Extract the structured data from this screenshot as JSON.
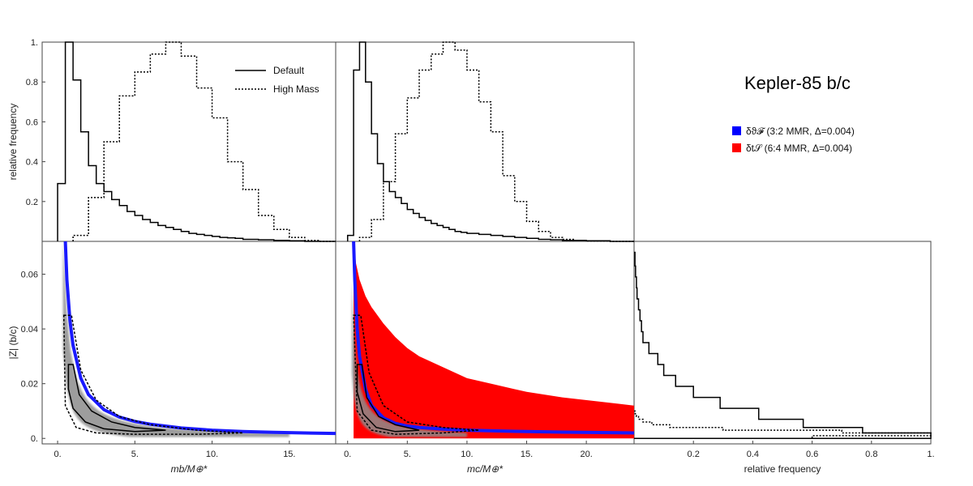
{
  "figure": {
    "title": "Kepler-85 b/c"
  },
  "legend": {
    "lines": [
      {
        "label": "Default",
        "style": "solid"
      },
      {
        "label": "High Mass",
        "style": "dotted"
      }
    ],
    "regions": [
      {
        "label": "δϑ𝓕 (3:2 MMR, Δ=0.004)",
        "color": "#0000ff"
      },
      {
        "label": "δt𝒮 (6:4 MMR, Δ=0.004)",
        "color": "#ff0000"
      }
    ]
  },
  "chart_data": [
    {
      "type": "histogram",
      "panel": "top-left",
      "xlim": [
        -1,
        18
      ],
      "ylim": [
        0,
        1
      ],
      "ylabel": "relative frequency",
      "yticks": [
        "0.2",
        "0.4",
        "0.6",
        "0.8",
        "1."
      ],
      "series": [
        {
          "name": "Default",
          "style": "solid",
          "edges": [
            0.0,
            0.5,
            1.0,
            1.5,
            2.0,
            2.5,
            3.0,
            3.5,
            4.0,
            4.5,
            5.0,
            5.5,
            6.0,
            6.5,
            7.0,
            7.5,
            8.0,
            8.5,
            9.0,
            9.5,
            10.0,
            10.5,
            11.0,
            11.5,
            12.0,
            13.0,
            14.0,
            15.0,
            16.0,
            18.0
          ],
          "values": [
            0.29,
            1.0,
            0.81,
            0.55,
            0.38,
            0.29,
            0.25,
            0.21,
            0.18,
            0.15,
            0.13,
            0.11,
            0.095,
            0.08,
            0.07,
            0.06,
            0.05,
            0.04,
            0.035,
            0.03,
            0.025,
            0.02,
            0.018,
            0.015,
            0.01,
            0.008,
            0.005,
            0.003,
            0.0
          ]
        },
        {
          "name": "High Mass",
          "style": "dotted",
          "edges": [
            1.0,
            2.0,
            3.0,
            4.0,
            5.0,
            6.0,
            7.0,
            8.0,
            9.0,
            10.0,
            11.0,
            12.0,
            13.0,
            14.0,
            15.0,
            16.0,
            17.0,
            18.0
          ],
          "values": [
            0.03,
            0.22,
            0.5,
            0.73,
            0.85,
            0.94,
            1.0,
            0.93,
            0.77,
            0.62,
            0.4,
            0.26,
            0.13,
            0.06,
            0.02,
            0.005,
            0.0
          ]
        }
      ]
    },
    {
      "type": "histogram",
      "panel": "top-middle",
      "xlim": [
        -1,
        24
      ],
      "ylim": [
        0,
        1
      ],
      "series": [
        {
          "name": "Default",
          "style": "solid",
          "edges": [
            0.0,
            0.5,
            1.0,
            1.5,
            2.0,
            2.5,
            3.0,
            3.5,
            4.0,
            4.5,
            5.0,
            5.5,
            6.0,
            6.5,
            7.0,
            7.5,
            8.0,
            8.5,
            9.0,
            9.5,
            10.0,
            11.0,
            12.0,
            13.0,
            14.0,
            15.0,
            16.0,
            17.0,
            18.0,
            20.0,
            22.0,
            24.0
          ],
          "values": [
            0.03,
            0.86,
            1.0,
            0.8,
            0.54,
            0.39,
            0.3,
            0.25,
            0.22,
            0.19,
            0.16,
            0.14,
            0.12,
            0.105,
            0.09,
            0.08,
            0.07,
            0.06,
            0.05,
            0.045,
            0.04,
            0.035,
            0.03,
            0.025,
            0.02,
            0.015,
            0.01,
            0.008,
            0.005,
            0.003,
            0.0
          ]
        },
        {
          "name": "High Mass",
          "style": "dotted",
          "edges": [
            1.0,
            2.0,
            3.0,
            4.0,
            5.0,
            6.0,
            7.0,
            8.0,
            9.0,
            10.0,
            11.0,
            12.0,
            13.0,
            14.0,
            15.0,
            16.0,
            17.0,
            18.0,
            19.0,
            20.0,
            22.0,
            24.0
          ],
          "values": [
            0.02,
            0.11,
            0.3,
            0.54,
            0.72,
            0.86,
            0.94,
            1.0,
            0.96,
            0.86,
            0.7,
            0.55,
            0.33,
            0.2,
            0.1,
            0.05,
            0.02,
            0.01,
            0.005,
            0.002,
            0.0
          ]
        }
      ]
    },
    {
      "type": "scatter",
      "panel": "bottom-left",
      "xlim": [
        -1,
        18
      ],
      "ylim": [
        -0.002,
        0.072
      ],
      "xlabel": "mb/M⊕*",
      "ylabel": "|Z| (b/c)",
      "xticks": [
        "0.",
        "5.",
        "10.",
        "15."
      ],
      "yticks": [
        "0.",
        "0.02",
        "0.04",
        "0.06"
      ],
      "blue_boundary": {
        "x": [
          0.5,
          0.6,
          0.8,
          1.0,
          1.5,
          2.0,
          3.0,
          4.0,
          5.0,
          6.0,
          8.0,
          10.0,
          12.0,
          14.0,
          18.0
        ],
        "y": [
          0.072,
          0.058,
          0.043,
          0.034,
          0.022,
          0.016,
          0.0105,
          0.0078,
          0.0062,
          0.0052,
          0.0038,
          0.003,
          0.0025,
          0.0022,
          0.0018
        ]
      }
    },
    {
      "type": "scatter",
      "panel": "bottom-middle",
      "xlim": [
        -1,
        24
      ],
      "ylim": [
        -0.002,
        0.072
      ],
      "xlabel": "mc/M⊕*",
      "xticks": [
        "0.",
        "5.",
        "10.",
        "15.",
        "20."
      ],
      "red_region_upper": {
        "x": [
          0.5,
          0.7,
          1.0,
          1.5,
          2.0,
          3.0,
          4.0,
          5.0,
          6.0,
          8.0,
          10.0,
          12.0,
          15.0,
          18.0,
          21.0,
          24.0
        ],
        "y": [
          0.072,
          0.064,
          0.058,
          0.052,
          0.048,
          0.042,
          0.037,
          0.033,
          0.03,
          0.026,
          0.022,
          0.02,
          0.017,
          0.015,
          0.0135,
          0.012
        ]
      },
      "blue_boundary": {
        "x": [
          0.5,
          0.6,
          0.8,
          1.0,
          1.5,
          2.0,
          3.0,
          4.0,
          5.0,
          6.0,
          8.0,
          10.0,
          14.0,
          18.0,
          24.0
        ],
        "y": [
          0.072,
          0.058,
          0.04,
          0.03,
          0.018,
          0.012,
          0.0075,
          0.0055,
          0.0045,
          0.004,
          0.0034,
          0.003,
          0.0026,
          0.0023,
          0.002
        ]
      }
    },
    {
      "type": "histogram",
      "panel": "bottom-right",
      "orientation": "horizontal",
      "xlim": [
        0,
        1
      ],
      "ylim": [
        -0.002,
        0.072
      ],
      "xlabel": "relative frequency",
      "xticks": [
        "0.2",
        "0.4",
        "0.6",
        "0.8",
        "1."
      ],
      "series": [
        {
          "name": "Default",
          "style": "solid",
          "edges": [
            0.0,
            0.002,
            0.004,
            0.007,
            0.011,
            0.015,
            0.019,
            0.023,
            0.027,
            0.031,
            0.035,
            0.039,
            0.043,
            0.047,
            0.051,
            0.055,
            0.059,
            0.063,
            0.068
          ],
          "values": [
            1.0,
            0.77,
            0.57,
            0.42,
            0.29,
            0.2,
            0.14,
            0.1,
            0.08,
            0.05,
            0.03,
            0.025,
            0.02,
            0.015,
            0.01,
            0.008,
            0.005,
            0.003
          ]
        },
        {
          "name": "High Mass",
          "style": "dotted",
          "edges": [
            0.0,
            0.001,
            0.002,
            0.003,
            0.004,
            0.005,
            0.006,
            0.007,
            0.008,
            0.009,
            0.01
          ],
          "values": [
            0.6,
            1.0,
            0.7,
            0.3,
            0.12,
            0.06,
            0.03,
            0.015,
            0.008,
            0.004
          ]
        }
      ]
    }
  ]
}
